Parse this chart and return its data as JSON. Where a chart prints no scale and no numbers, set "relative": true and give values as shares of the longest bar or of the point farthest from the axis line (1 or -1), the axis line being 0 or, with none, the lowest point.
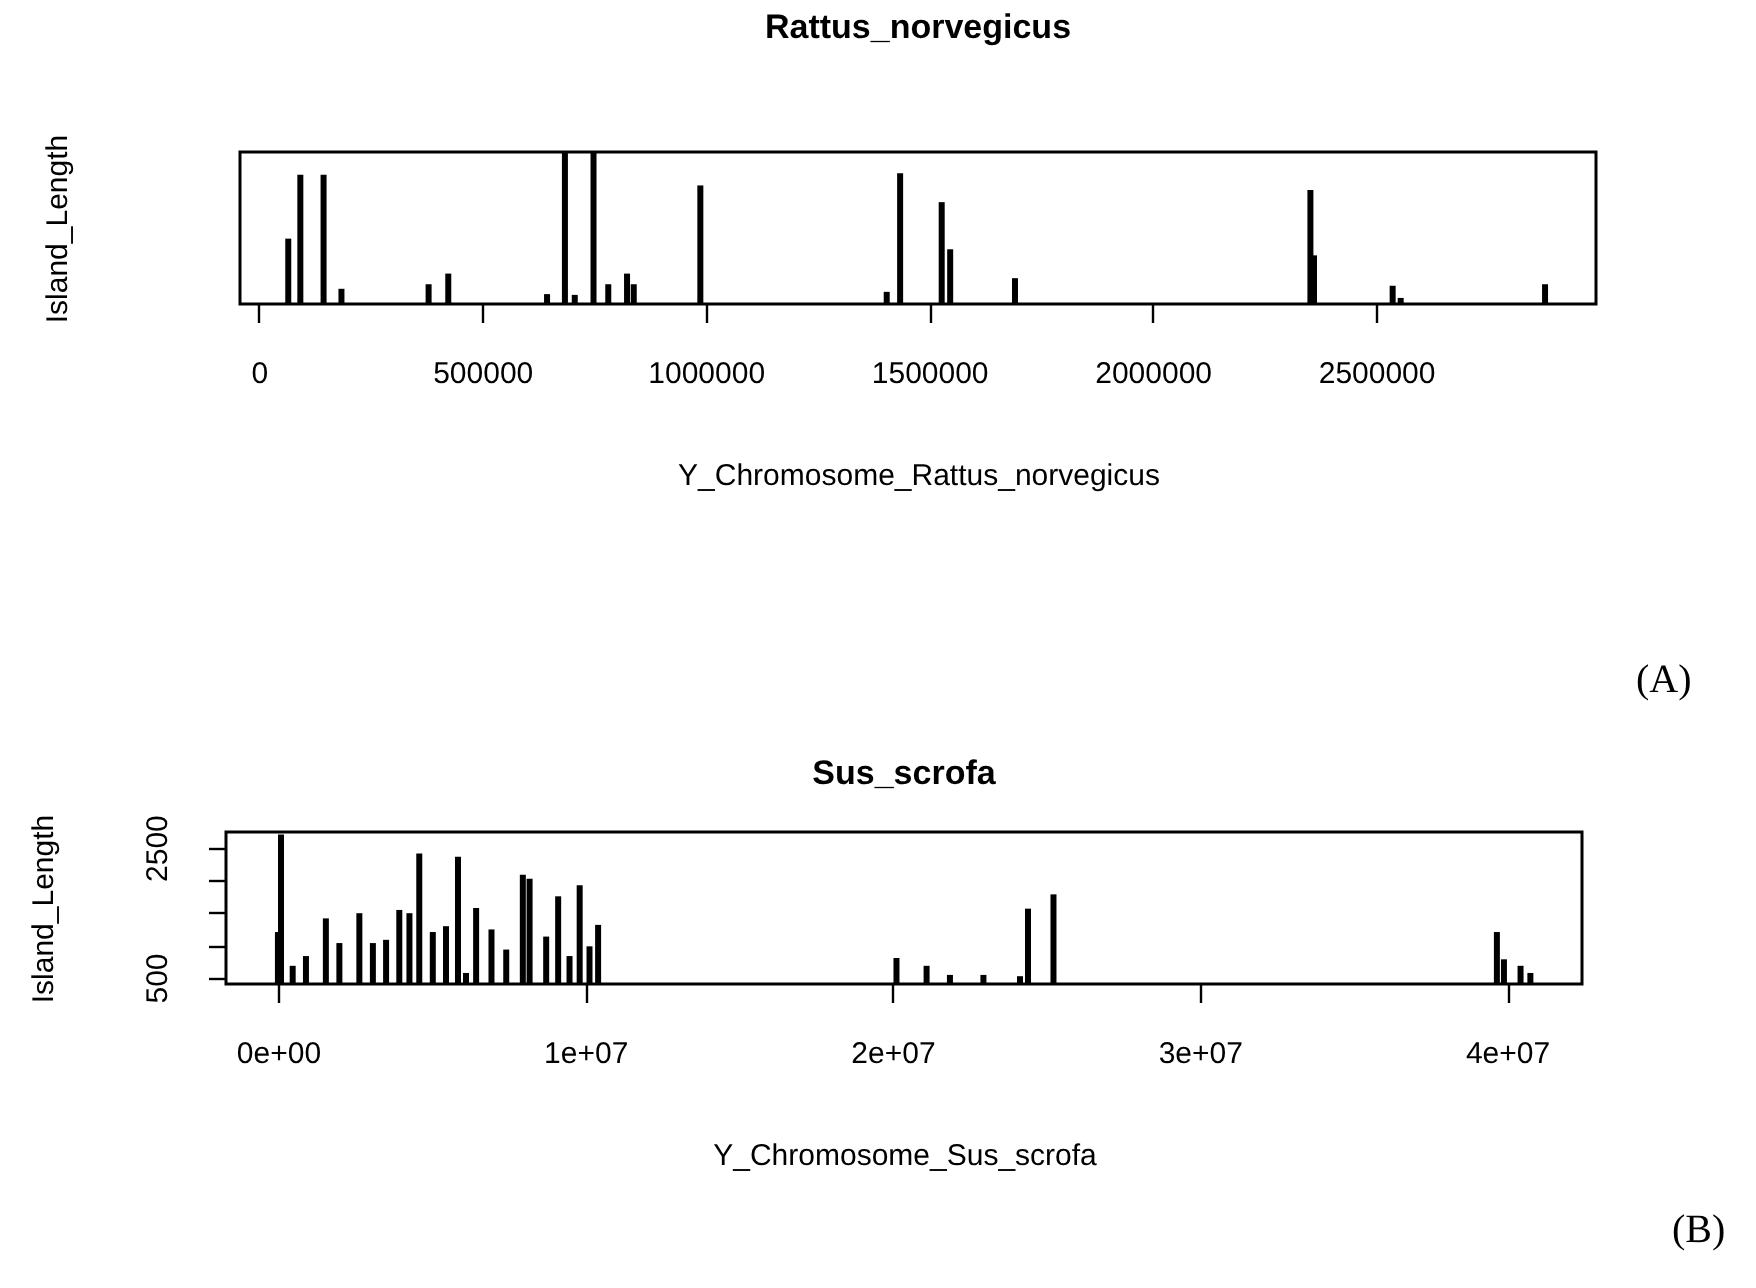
{
  "chart_data": [
    {
      "type": "bar",
      "title": "Rattus_norvegicus",
      "xlabel": "Y_Chromosome_Rattus_norvegicus",
      "ylabel": "Island_Length",
      "relative": true,
      "color": "#000000",
      "grid": false,
      "annotations": [
        "(A)"
      ],
      "x": [
        66000,
        93000,
        145000,
        185000,
        380000,
        424000,
        645000,
        685000,
        707000,
        749000,
        782000,
        824000,
        839000,
        988000,
        1405000,
        1435000,
        1528000,
        1547000,
        1692000,
        2353000,
        2361000,
        2537000,
        2555000,
        2878000
      ],
      "values": [
        0.43,
        0.85,
        0.85,
        0.1,
        0.13,
        0.2,
        0.065,
        1,
        0.06,
        1,
        0.13,
        0.2,
        0.13,
        0.78,
        0.08,
        0.86,
        0.67,
        0.36,
        0.17,
        0.75,
        0.32,
        0.12,
        0.04,
        0.13
      ],
      "xlim": [
        -42000,
        2992000
      ],
      "xticks": [
        0,
        500000,
        1000000,
        1500000,
        2000000,
        2500000
      ]
    },
    {
      "type": "bar",
      "title": "Sus_scrofa",
      "xlabel": "Y_Chromosome_Sus_scrofa",
      "ylabel": "Island_Length",
      "color": "#000000",
      "grid": false,
      "annotations": [
        "(B)"
      ],
      "x": [
        0,
        100000,
        480000,
        912000,
        1560000,
        2000000,
        2650000,
        3090000,
        3520000,
        3950000,
        4280000,
        4600000,
        5040000,
        5470000,
        5860000,
        6120000,
        6450000,
        6950000,
        7430000,
        7970000,
        8190000,
        8730000,
        9120000,
        9490000,
        9820000,
        10140000,
        10420000,
        20130000,
        21110000,
        21870000,
        22960000,
        24150000,
        24410000,
        25240000,
        39670000,
        39900000,
        40440000,
        40760000
      ],
      "values": [
        1200,
        2700,
        680,
        830,
        1410,
        1030,
        1490,
        1030,
        1080,
        1540,
        1490,
        2410,
        1200,
        1290,
        2360,
        570,
        1570,
        1240,
        930,
        2080,
        2020,
        1130,
        1750,
        830,
        1920,
        980,
        1310,
        800,
        680,
        540,
        540,
        520,
        1560,
        1780,
        1200,
        780,
        680,
        570
      ],
      "xlim": [
        -1690000,
        42440000
      ],
      "ylim": [
        400,
        2740
      ],
      "xticks": [
        {
          "value": 0,
          "label": "0e+00"
        },
        {
          "value": 10000000,
          "label": "1e+07"
        },
        {
          "value": 20000000,
          "label": "2e+07"
        },
        {
          "value": 30000000,
          "label": "3e+07"
        },
        {
          "value": 40000000,
          "label": "4e+07"
        }
      ],
      "yticks": [
        500,
        {
          "value": 1000,
          "label": null
        },
        {
          "value": 1500,
          "label": null
        },
        {
          "value": 2000,
          "label": null
        },
        2500
      ]
    }
  ]
}
